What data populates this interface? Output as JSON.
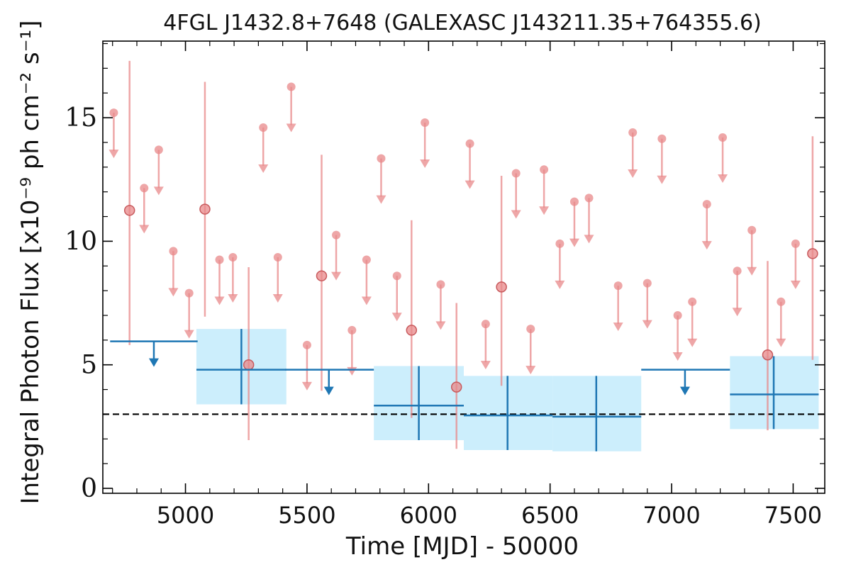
{
  "chart_data": {
    "type": "scatter",
    "title": "4FGL J1432.8+7648 (GALEXASC J143211.35+764355.6)",
    "xlabel": "Time [MJD] - 50000",
    "ylabel": "Integral Photon Flux [x10⁻⁹ ph cm⁻² s⁻¹]",
    "xlim": [
      4660,
      7630
    ],
    "ylim": [
      -0.2,
      18.1
    ],
    "x_ticks": [
      5000,
      5500,
      6000,
      6500,
      7000,
      7500
    ],
    "y_ticks": [
      0,
      5,
      10,
      15
    ],
    "x_tick_labels": [
      "5000",
      "5500",
      "6000",
      "6500",
      "7000",
      "7500"
    ],
    "y_tick_labels": [
      "0",
      "5",
      "10",
      "15"
    ],
    "grid": false,
    "reference_line": {
      "y": 3.0,
      "style": "dashed",
      "color": "#000000"
    },
    "colors": {
      "short_bins": "#e8888a",
      "long_bins": "#1f77b4",
      "band_fill": "#cceefc"
    },
    "series": [
      {
        "kind": "short_bins_upper_limits",
        "x": [
          4705,
          4890,
          4830,
          4950,
          5015,
          5140,
          5195,
          5320,
          5380,
          5500,
          5435,
          5620,
          5685,
          5745,
          5805,
          5870,
          5985,
          6050,
          6170,
          6235,
          6360,
          6420,
          6475,
          6540,
          6600,
          6660,
          6780,
          6840,
          6900,
          6960,
          7025,
          7085,
          7145,
          7210,
          7270,
          7330,
          7450,
          7510
        ],
        "y": [
          15.2,
          13.7,
          12.15,
          9.6,
          7.9,
          9.25,
          9.35,
          14.6,
          9.35,
          5.8,
          16.25,
          10.25,
          6.4,
          9.25,
          13.35,
          8.6,
          14.8,
          8.25,
          13.95,
          6.65,
          12.75,
          6.45,
          12.9,
          9.9,
          11.6,
          11.75,
          8.2,
          14.4,
          8.3,
          14.15,
          7.0,
          7.55,
          11.5,
          14.2,
          8.8,
          10.45,
          7.55,
          9.9
        ]
      },
      {
        "kind": "short_bins_detections",
        "x": [
          4770,
          5080,
          5260,
          5560,
          5930,
          6115,
          6300,
          7395,
          7580
        ],
        "y": [
          11.25,
          11.3,
          5.0,
          8.6,
          6.4,
          4.1,
          8.15,
          5.4,
          9.5
        ],
        "y_low": [
          5.8,
          6.95,
          1.95,
          3.95,
          2.85,
          1.6,
          4.15,
          2.35,
          5.2
        ],
        "y_high": [
          17.3,
          16.45,
          8.95,
          13.5,
          10.85,
          7.5,
          12.65,
          9.2,
          14.25
        ]
      },
      {
        "kind": "long_bins_upper_limits",
        "x": [
          4870,
          5590,
          7055
        ],
        "x_low": [
          4690,
          5410,
          6875
        ],
        "x_high": [
          5050,
          5775,
          7240
        ],
        "y": [
          5.95,
          4.8,
          4.8
        ]
      },
      {
        "kind": "long_bins_detections",
        "x": [
          5230,
          5960,
          6325,
          6690,
          7420
        ],
        "x_low": [
          5045,
          5775,
          6145,
          6510,
          7240
        ],
        "x_high": [
          5415,
          6145,
          6510,
          6875,
          7605
        ],
        "y": [
          4.8,
          3.35,
          2.95,
          2.9,
          3.8
        ],
        "y_low": [
          3.4,
          1.95,
          1.55,
          1.5,
          2.4
        ],
        "y_high": [
          6.45,
          4.95,
          4.55,
          4.55,
          5.35
        ]
      }
    ]
  }
}
